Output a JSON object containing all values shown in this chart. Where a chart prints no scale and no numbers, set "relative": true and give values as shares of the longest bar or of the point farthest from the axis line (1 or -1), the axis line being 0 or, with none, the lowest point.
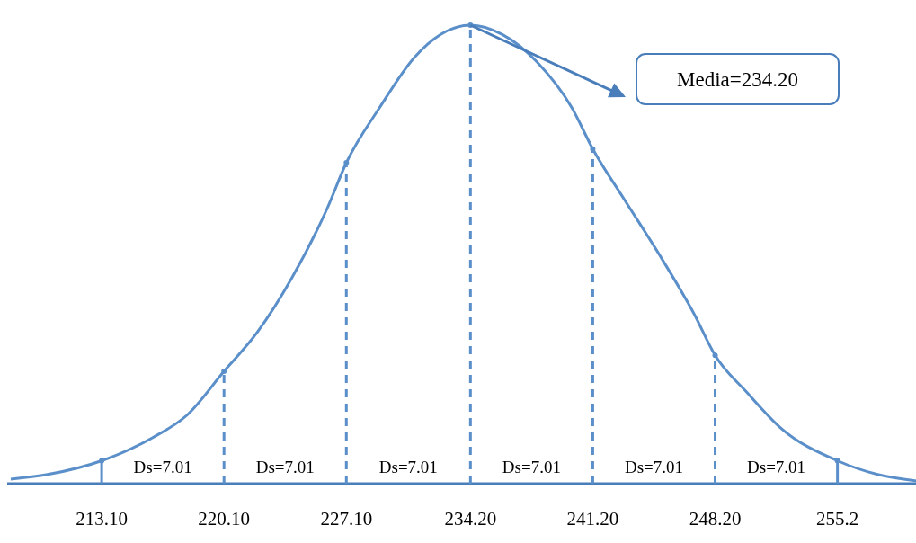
{
  "chart_data": {
    "type": "line",
    "relative": true,
    "x": [
      207.9,
      210,
      213.1,
      216,
      218,
      220.1,
      222,
      224,
      226,
      227.1,
      229,
      231,
      232.5,
      234.2,
      236,
      238,
      240,
      241.2,
      243,
      245,
      247,
      248.2,
      250,
      252,
      255.2,
      257.5,
      259.9
    ],
    "series": [
      {
        "color": "#5b8fc9",
        "values": [
          0.01,
          0.02,
          0.05,
          0.1,
          0.15,
          0.245,
          0.33,
          0.45,
          0.6,
          0.7,
          0.82,
          0.93,
          0.98,
          1.0,
          0.98,
          0.92,
          0.82,
          0.73,
          0.62,
          0.5,
          0.37,
          0.28,
          0.2,
          0.12,
          0.05,
          0.02,
          0.005
        ]
      },
      {
        "type": "lollipop",
        "color": "#5b8fc9",
        "line_style": "dashed",
        "marker": "circle",
        "x": [
          220.1,
          227.1,
          234.2,
          241.2,
          248.2
        ],
        "values": [
          0.245,
          0.7,
          1.0,
          0.73,
          0.28
        ]
      },
      {
        "type": "lollipop",
        "color": "#5b8fc9",
        "line_style": "solid",
        "marker": "circle",
        "x": [
          213.1,
          255.2
        ],
        "values": [
          0.05,
          0.05
        ]
      }
    ],
    "xlim": [
      207.9,
      259.9
    ],
    "xticks": [
      {
        "value": 213.1,
        "label": "213.10"
      },
      {
        "value": 220.1,
        "label": "220.10"
      },
      {
        "value": 227.1,
        "label": "227.10"
      },
      {
        "value": 234.2,
        "label": "234.20"
      },
      {
        "value": 241.2,
        "label": "241.20"
      },
      {
        "value": 248.2,
        "label": "248.20"
      },
      {
        "value": 255.2,
        "label": "255.2"
      }
    ],
    "tick_labels": "x",
    "annotations": [
      "Ds=7.01",
      "Ds=7.01",
      "Ds=7.01",
      "Ds=7.01",
      "Ds=7.01",
      "Ds=7.01",
      "Media=234.20"
    ],
    "marker": "none",
    "line_style": "solid"
  }
}
